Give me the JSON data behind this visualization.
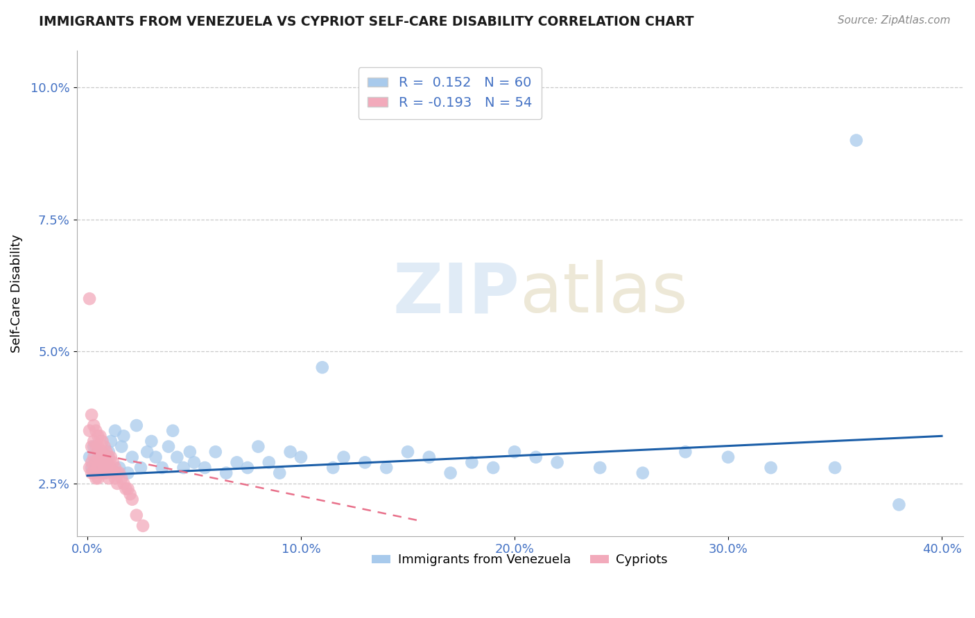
{
  "title": "IMMIGRANTS FROM VENEZUELA VS CYPRIOT SELF-CARE DISABILITY CORRELATION CHART",
  "source": "Source: ZipAtlas.com",
  "ylabel": "Self-Care Disability",
  "xlim": [
    -0.005,
    0.41
  ],
  "ylim": [
    0.015,
    0.107
  ],
  "xticks": [
    0.0,
    0.1,
    0.2,
    0.3,
    0.4
  ],
  "xtick_labels": [
    "0.0%",
    "10.0%",
    "20.0%",
    "30.0%",
    "40.0%"
  ],
  "yticks": [
    0.025,
    0.05,
    0.075,
    0.1
  ],
  "ytick_labels": [
    "2.5%",
    "5.0%",
    "7.5%",
    "10.0%"
  ],
  "r_blue": 0.152,
  "n_blue": 60,
  "r_pink": -0.193,
  "n_pink": 54,
  "blue_color": "#A8CAEC",
  "pink_color": "#F2AABB",
  "trend_blue": "#1B5EA8",
  "trend_pink": "#E8708A",
  "blue_scatter_x": [
    0.001,
    0.002,
    0.003,
    0.004,
    0.005,
    0.006,
    0.007,
    0.008,
    0.009,
    0.01,
    0.011,
    0.013,
    0.015,
    0.016,
    0.017,
    0.019,
    0.021,
    0.023,
    0.025,
    0.028,
    0.03,
    0.032,
    0.035,
    0.038,
    0.04,
    0.042,
    0.045,
    0.048,
    0.05,
    0.055,
    0.06,
    0.065,
    0.07,
    0.075,
    0.08,
    0.085,
    0.09,
    0.095,
    0.1,
    0.11,
    0.115,
    0.12,
    0.13,
    0.14,
    0.15,
    0.16,
    0.17,
    0.18,
    0.19,
    0.2,
    0.21,
    0.22,
    0.24,
    0.26,
    0.28,
    0.3,
    0.32,
    0.35,
    0.36,
    0.38
  ],
  "blue_scatter_y": [
    0.03,
    0.028,
    0.032,
    0.029,
    0.031,
    0.028,
    0.03,
    0.027,
    0.029,
    0.031,
    0.033,
    0.035,
    0.028,
    0.032,
    0.034,
    0.027,
    0.03,
    0.036,
    0.028,
    0.031,
    0.033,
    0.03,
    0.028,
    0.032,
    0.035,
    0.03,
    0.028,
    0.031,
    0.029,
    0.028,
    0.031,
    0.027,
    0.029,
    0.028,
    0.032,
    0.029,
    0.027,
    0.031,
    0.03,
    0.047,
    0.028,
    0.03,
    0.029,
    0.028,
    0.031,
    0.03,
    0.027,
    0.029,
    0.028,
    0.031,
    0.03,
    0.029,
    0.028,
    0.027,
    0.031,
    0.03,
    0.028,
    0.028,
    0.09,
    0.021
  ],
  "pink_scatter_x": [
    0.001,
    0.001,
    0.001,
    0.002,
    0.002,
    0.002,
    0.002,
    0.003,
    0.003,
    0.003,
    0.003,
    0.004,
    0.004,
    0.004,
    0.004,
    0.005,
    0.005,
    0.005,
    0.005,
    0.005,
    0.006,
    0.006,
    0.006,
    0.006,
    0.007,
    0.007,
    0.007,
    0.007,
    0.008,
    0.008,
    0.008,
    0.009,
    0.009,
    0.009,
    0.01,
    0.01,
    0.01,
    0.011,
    0.011,
    0.012,
    0.012,
    0.013,
    0.013,
    0.014,
    0.014,
    0.015,
    0.016,
    0.017,
    0.018,
    0.019,
    0.02,
    0.021,
    0.023,
    0.026
  ],
  "pink_scatter_y": [
    0.06,
    0.035,
    0.028,
    0.038,
    0.032,
    0.029,
    0.027,
    0.036,
    0.033,
    0.03,
    0.027,
    0.035,
    0.032,
    0.029,
    0.026,
    0.034,
    0.032,
    0.03,
    0.028,
    0.026,
    0.034,
    0.031,
    0.029,
    0.027,
    0.033,
    0.031,
    0.029,
    0.027,
    0.032,
    0.03,
    0.028,
    0.031,
    0.029,
    0.027,
    0.03,
    0.028,
    0.026,
    0.03,
    0.028,
    0.029,
    0.027,
    0.028,
    0.026,
    0.027,
    0.025,
    0.027,
    0.026,
    0.025,
    0.024,
    0.024,
    0.023,
    0.022,
    0.019,
    0.017
  ],
  "blue_trend_x": [
    0.0,
    0.4
  ],
  "blue_trend_y": [
    0.0265,
    0.034
  ],
  "pink_trend_x": [
    0.0,
    0.155
  ],
  "pink_trend_y": [
    0.031,
    0.018
  ]
}
